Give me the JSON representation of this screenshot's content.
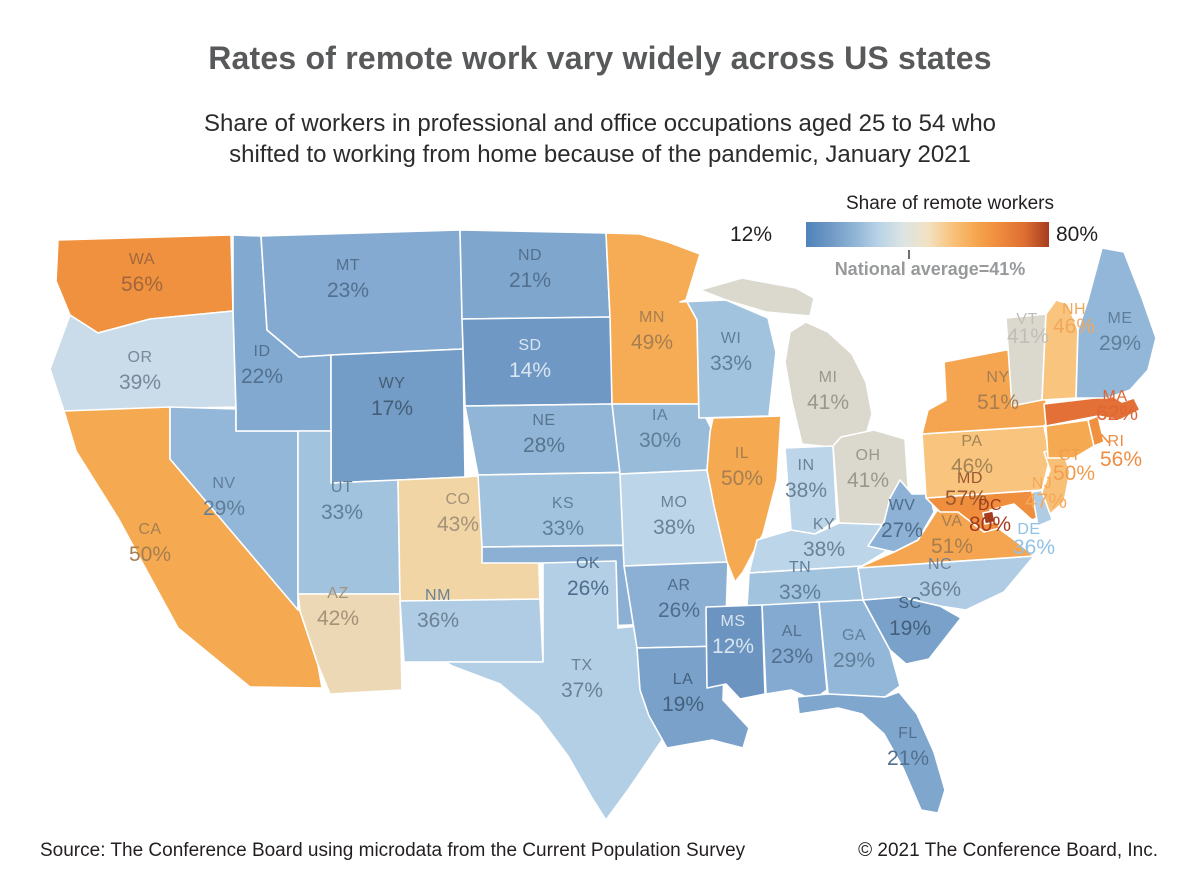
{
  "title": "Rates of remote work vary widely across US states",
  "subtitle_line1": "Share of workers in professional and office occupations aged 25 to 54 who",
  "subtitle_line2": "shifted to working from home because of the pandemic, January 2021",
  "legend": {
    "title": "Share of remote workers",
    "min_label": "12%",
    "max_label": "80%",
    "average_label": "National average=41%",
    "gradient_stops": [
      "#5083BA",
      "#6F98C4",
      "#8FB4D6",
      "#B9D3E7",
      "#DCE4E3",
      "#F2E2C4",
      "#F8C37C",
      "#F5A64F",
      "#EE8A3C",
      "#DD6E33",
      "#A63C1E"
    ]
  },
  "footer": {
    "source": "Source: The Conference Board using microdata from the Current Population Survey",
    "copyright": "© 2021 The Conference Board, Inc."
  },
  "chart_data": {
    "type": "choropleth-map",
    "title": "Share of remote workers",
    "unit": "percent",
    "value_range": [
      12,
      80
    ],
    "national_average": 41,
    "color_scale": {
      "low": "#5083BA",
      "mid": "#F2E2C4",
      "high": "#A63C1E"
    },
    "states": [
      {
        "abbr": "WA",
        "name": "Washington",
        "value": 56,
        "label": "56%",
        "fill": "#F0913F",
        "label_color": "#A2663C"
      },
      {
        "abbr": "OR",
        "name": "Oregon",
        "value": 39,
        "label": "39%",
        "fill": "#CADCEA",
        "label_color": "#76889B"
      },
      {
        "abbr": "CA",
        "name": "California",
        "value": 50,
        "label": "50%",
        "fill": "#F5A951",
        "label_color": "#A67E50"
      },
      {
        "abbr": "NV",
        "name": "Nevada",
        "value": 29,
        "label": "29%",
        "fill": "#93B7D8",
        "label_color": "#5F7E99"
      },
      {
        "abbr": "ID",
        "name": "Idaho",
        "value": 22,
        "label": "22%",
        "fill": "#82A9D0",
        "label_color": "#52708E"
      },
      {
        "abbr": "MT",
        "name": "Montana",
        "value": 23,
        "label": "23%",
        "fill": "#84AAD1",
        "label_color": "#52708E"
      },
      {
        "abbr": "WY",
        "name": "Wyoming",
        "value": 17,
        "label": "17%",
        "fill": "#739CC6",
        "label_color": "#455E76"
      },
      {
        "abbr": "UT",
        "name": "Utah",
        "value": 33,
        "label": "33%",
        "fill": "#A2C3DE",
        "label_color": "#5F7E99"
      },
      {
        "abbr": "CO",
        "name": "Colorado",
        "value": 43,
        "label": "43%",
        "fill": "#F1D5A5",
        "label_color": "#A4927A"
      },
      {
        "abbr": "AZ",
        "name": "Arizona",
        "value": 42,
        "label": "42%",
        "fill": "#ECD8B4",
        "label_color": "#A4927A"
      },
      {
        "abbr": "NM",
        "name": "New Mexico",
        "value": 36,
        "label": "36%",
        "fill": "#AFCCE4",
        "label_color": "#6B8296"
      },
      {
        "abbr": "ND",
        "name": "North Dakota",
        "value": 21,
        "label": "21%",
        "fill": "#7FA6CD",
        "label_color": "#52708E"
      },
      {
        "abbr": "SD",
        "name": "South Dakota",
        "value": 14,
        "label": "14%",
        "fill": "#6F98C4",
        "label_color": "#D9E5F1"
      },
      {
        "abbr": "NE",
        "name": "Nebraska",
        "value": 28,
        "label": "28%",
        "fill": "#90B5D6",
        "label_color": "#57748F"
      },
      {
        "abbr": "KS",
        "name": "Kansas",
        "value": 33,
        "label": "33%",
        "fill": "#A2C3DE",
        "label_color": "#5F7E99"
      },
      {
        "abbr": "OK",
        "name": "Oklahoma",
        "value": 26,
        "label": "26%",
        "fill": "#8BB0D4",
        "label_color": "#4E6D8C"
      },
      {
        "abbr": "TX",
        "name": "Texas",
        "value": 37,
        "label": "37%",
        "fill": "#B3CFE5",
        "label_color": "#6B8296"
      },
      {
        "abbr": "MN",
        "name": "Minnesota",
        "value": 49,
        "label": "49%",
        "fill": "#F6AC55",
        "label_color": "#A67E50"
      },
      {
        "abbr": "IA",
        "name": "Iowa",
        "value": 30,
        "label": "30%",
        "fill": "#97BBD9",
        "label_color": "#5F7E99"
      },
      {
        "abbr": "MO",
        "name": "Missouri",
        "value": 38,
        "label": "38%",
        "fill": "#BDD5E8",
        "label_color": "#6B8296"
      },
      {
        "abbr": "AR",
        "name": "Arkansas",
        "value": 26,
        "label": "26%",
        "fill": "#8BB0D4",
        "label_color": "#4E6D8C"
      },
      {
        "abbr": "LA",
        "name": "Louisiana",
        "value": 19,
        "label": "19%",
        "fill": "#79A1C9",
        "label_color": "#43617D"
      },
      {
        "abbr": "WI",
        "name": "Wisconsin",
        "value": 33,
        "label": "33%",
        "fill": "#A2C3DE",
        "label_color": "#5F7E99"
      },
      {
        "abbr": "IL",
        "name": "Illinois",
        "value": 50,
        "label": "50%",
        "fill": "#F5A951",
        "label_color": "#A67E50"
      },
      {
        "abbr": "MI",
        "name": "Michigan",
        "value": 41,
        "label": "41%",
        "fill": "#DBD8CE",
        "label_color": "#9B978D"
      },
      {
        "abbr": "IN",
        "name": "Indiana",
        "value": 38,
        "label": "38%",
        "fill": "#BDD5E8",
        "label_color": "#6B8296"
      },
      {
        "abbr": "OH",
        "name": "Ohio",
        "value": 41,
        "label": "41%",
        "fill": "#DBD8CE",
        "label_color": "#9B978D"
      },
      {
        "abbr": "KY",
        "name": "Kentucky",
        "value": 38,
        "label": "38%",
        "fill": "#BDD5E8",
        "label_color": "#6B8296"
      },
      {
        "abbr": "TN",
        "name": "Tennessee",
        "value": 33,
        "label": "33%",
        "fill": "#A2C3DE",
        "label_color": "#5F7E99"
      },
      {
        "abbr": "MS",
        "name": "Mississippi",
        "value": 12,
        "label": "12%",
        "fill": "#6C94C1",
        "label_color": "#D9E5F1"
      },
      {
        "abbr": "AL",
        "name": "Alabama",
        "value": 23,
        "label": "23%",
        "fill": "#84AAD1",
        "label_color": "#52708E"
      },
      {
        "abbr": "GA",
        "name": "Georgia",
        "value": 29,
        "label": "29%",
        "fill": "#93B7D8",
        "label_color": "#5F7E99"
      },
      {
        "abbr": "FL",
        "name": "Florida",
        "value": 21,
        "label": "21%",
        "fill": "#7FA6CD",
        "label_color": "#52708E"
      },
      {
        "abbr": "SC",
        "name": "South Carolina",
        "value": 19,
        "label": "19%",
        "fill": "#79A1C9",
        "label_color": "#43617D"
      },
      {
        "abbr": "NC",
        "name": "North Carolina",
        "value": 36,
        "label": "36%",
        "fill": "#AFCCE4",
        "label_color": "#6B8296"
      },
      {
        "abbr": "VA",
        "name": "Virginia",
        "value": 51,
        "label": "51%",
        "fill": "#F5A54F",
        "label_color": "#A67E50"
      },
      {
        "abbr": "WV",
        "name": "West Virginia",
        "value": 27,
        "label": "27%",
        "fill": "#8DB2D5",
        "label_color": "#4E6D8C"
      },
      {
        "abbr": "MD",
        "name": "Maryland",
        "value": 57,
        "label": "57%",
        "fill": "#EF8E3C",
        "label_color": "#9A5630"
      },
      {
        "abbr": "DE",
        "name": "Delaware",
        "value": 36,
        "label": "36%",
        "fill": "#AFCCE4",
        "label_color": "#90C2E6"
      },
      {
        "abbr": "DC",
        "name": "District of Columbia",
        "value": 80,
        "label": "80%",
        "fill": "#A63C1E",
        "label_color": "#A33A1D"
      },
      {
        "abbr": "PA",
        "name": "Pennsylvania",
        "value": 46,
        "label": "46%",
        "fill": "#F9C47D",
        "label_color": "#A28457"
      },
      {
        "abbr": "NJ",
        "name": "New Jersey",
        "value": 47,
        "label": "47%",
        "fill": "#F8C076",
        "label_color": "#F5A85A"
      },
      {
        "abbr": "NY",
        "name": "New York",
        "value": 51,
        "label": "51%",
        "fill": "#F5A54F",
        "label_color": "#A67E50"
      },
      {
        "abbr": "CT",
        "name": "Connecticut",
        "value": 50,
        "label": "50%",
        "fill": "#F5A951",
        "label_color": "#F29D4D"
      },
      {
        "abbr": "RI",
        "name": "Rhode Island",
        "value": 56,
        "label": "56%",
        "fill": "#F0913F",
        "label_color": "#EE8C42"
      },
      {
        "abbr": "MA",
        "name": "Massachusetts",
        "value": 62,
        "label": "62%",
        "fill": "#E37137",
        "label_color": "#DF6532"
      },
      {
        "abbr": "VT",
        "name": "Vermont",
        "value": 41,
        "label": "41%",
        "fill": "#DBD8CE",
        "label_color": "#C0BEB8"
      },
      {
        "abbr": "NH",
        "name": "New Hampshire",
        "value": 46,
        "label": "46%",
        "fill": "#F9C47D",
        "label_color": "#F3A75C"
      },
      {
        "abbr": "ME",
        "name": "Maine",
        "value": 29,
        "label": "29%",
        "fill": "#93B7D8",
        "label_color": "#5F7E99"
      }
    ]
  }
}
